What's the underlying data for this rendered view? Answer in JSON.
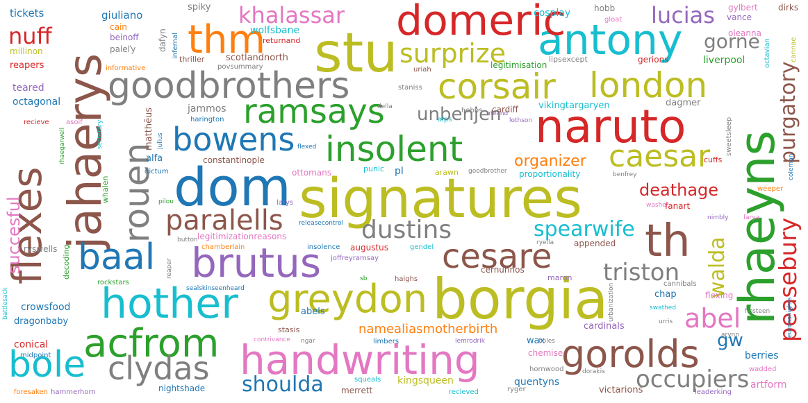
{
  "colors": {
    "blue": "#1f77b4",
    "orange": "#ff7f0e",
    "green": "#2ca02c",
    "red": "#d62728",
    "purple": "#9467bd",
    "brown": "#8c564b",
    "pink": "#e377c2",
    "gray": "#7f7f7f",
    "olive": "#bcbd22",
    "cyan": "#17becf"
  },
  "words": [
    {
      "text": "signatures",
      "color": "olive"
    },
    {
      "text": "borgia",
      "color": "olive"
    },
    {
      "text": "dom",
      "color": "blue"
    },
    {
      "text": "naruto",
      "color": "red"
    },
    {
      "text": "rhaeyns",
      "color": "green"
    },
    {
      "text": "jahaerys",
      "color": "brown"
    },
    {
      "text": "flexes",
      "color": "brown"
    },
    {
      "text": "stu",
      "color": "olive"
    },
    {
      "text": "goodbrothers",
      "color": "gray"
    },
    {
      "text": "hother",
      "color": "cyan"
    },
    {
      "text": "acfrom",
      "color": "green"
    },
    {
      "text": "handwriting",
      "color": "pink"
    },
    {
      "text": "greydon",
      "color": "olive"
    },
    {
      "text": "brutus",
      "color": "purple"
    },
    {
      "text": "antony",
      "color": "cyan"
    },
    {
      "text": "domeric",
      "color": "red"
    },
    {
      "text": "corsair",
      "color": "olive"
    },
    {
      "text": "london",
      "color": "olive"
    },
    {
      "text": "insolent",
      "color": "green"
    },
    {
      "text": "ramsays",
      "color": "green"
    },
    {
      "text": "gorolds",
      "color": "brown"
    },
    {
      "text": "rouen",
      "color": "gray"
    },
    {
      "text": "thm",
      "color": "orange"
    },
    {
      "text": "th",
      "color": "brown"
    },
    {
      "text": "baal",
      "color": "blue"
    },
    {
      "text": "bole",
      "color": "cyan"
    },
    {
      "text": "clydas",
      "color": "gray"
    },
    {
      "text": "cesare",
      "color": "brown"
    },
    {
      "text": "bowens",
      "color": "blue"
    },
    {
      "text": "caesar",
      "color": "olive"
    },
    {
      "text": "paralells",
      "color": "brown"
    },
    {
      "text": "surprize",
      "color": "olive"
    },
    {
      "text": "dustins",
      "color": "gray"
    },
    {
      "text": "triston",
      "color": "gray"
    },
    {
      "text": "occupiers",
      "color": "gray"
    },
    {
      "text": "peasebury",
      "color": "red"
    },
    {
      "text": "khalassar",
      "color": "pink"
    },
    {
      "text": "lucias",
      "color": "purple"
    },
    {
      "text": "abel",
      "color": "pink"
    },
    {
      "text": "spearwife",
      "color": "cyan"
    },
    {
      "text": "shoulda",
      "color": "blue"
    },
    {
      "text": "nuff",
      "color": "red"
    },
    {
      "text": "purgatory",
      "color": "brown"
    },
    {
      "text": "walda",
      "color": "olive"
    },
    {
      "text": "gorne",
      "color": "gray"
    },
    {
      "text": "unbenjen",
      "color": "gray"
    },
    {
      "text": "organizer",
      "color": "orange"
    },
    {
      "text": "deathage",
      "color": "red"
    },
    {
      "text": "succesful",
      "color": "pink"
    },
    {
      "text": "gw",
      "color": "blue"
    },
    {
      "text": "namealiasmotherbirth",
      "color": "orange"
    },
    {
      "text": "tickets",
      "color": "blue"
    },
    {
      "text": "spiky",
      "color": "gray"
    },
    {
      "text": "cosplay",
      "color": "cyan"
    },
    {
      "text": "hobb",
      "color": "gray"
    },
    {
      "text": "gylbert",
      "color": "pink"
    },
    {
      "text": "dirks",
      "color": "brown"
    },
    {
      "text": "vance",
      "color": "purple"
    },
    {
      "text": "gloat",
      "color": "pink"
    },
    {
      "text": "giuliano",
      "color": "blue"
    },
    {
      "text": "cain",
      "color": "orange"
    },
    {
      "text": "beinoff",
      "color": "purple"
    },
    {
      "text": "paleľy",
      "color": "gray"
    },
    {
      "text": "wolfsbane",
      "color": "cyan"
    },
    {
      "text": "returnand",
      "color": "red"
    },
    {
      "text": "dafyn",
      "color": "gray"
    },
    {
      "text": "infernal",
      "color": "blue"
    },
    {
      "text": "millinon",
      "color": "olive"
    },
    {
      "text": "reapers",
      "color": "red"
    },
    {
      "text": "scotlandnorth",
      "color": "brown"
    },
    {
      "text": "thriller",
      "color": "brown"
    },
    {
      "text": "povsummary",
      "color": "gray"
    },
    {
      "text": "informative",
      "color": "orange"
    },
    {
      "text": "uriah",
      "color": "brown"
    },
    {
      "text": "lipsexcept",
      "color": "gray"
    },
    {
      "text": "legitimisation",
      "color": "green"
    },
    {
      "text": "gerions",
      "color": "red"
    },
    {
      "text": "liverpool",
      "color": "green"
    },
    {
      "text": "oleanna",
      "color": "pink"
    },
    {
      "text": "octavian",
      "color": "cyan"
    },
    {
      "text": "cannae",
      "color": "olive"
    },
    {
      "text": "teared",
      "color": "purple"
    },
    {
      "text": "staniss",
      "color": "gray"
    },
    {
      "text": "octagonal",
      "color": "blue"
    },
    {
      "text": "jammos",
      "color": "gray"
    },
    {
      "text": "vikingtargaryen",
      "color": "cyan"
    },
    {
      "text": "dagmer",
      "color": "gray"
    },
    {
      "text": "matthēus",
      "color": "brown"
    },
    {
      "text": "della",
      "color": "gray"
    },
    {
      "text": "meand",
      "color": "purple"
    },
    {
      "text": "recieve",
      "color": "red"
    },
    {
      "text": "asoif",
      "color": "pink"
    },
    {
      "text": "secretary",
      "color": "cyan"
    },
    {
      "text": "harington",
      "color": "blue"
    },
    {
      "text": "hobbs",
      "color": "gray"
    },
    {
      "text": "cardiff",
      "color": "brown"
    },
    {
      "text": "sweetsleep",
      "color": "gray"
    },
    {
      "text": "rhaegarwell",
      "color": "green"
    },
    {
      "text": "julius",
      "color": "blue"
    },
    {
      "text": "alps",
      "color": "cyan"
    },
    {
      "text": "lothson",
      "color": "purple"
    },
    {
      "text": "alfa",
      "color": "blue"
    },
    {
      "text": "flexed",
      "color": "blue"
    },
    {
      "text": "constantinople",
      "color": "brown"
    },
    {
      "text": "cuffs",
      "color": "red"
    },
    {
      "text": "coleman",
      "color": "blue"
    },
    {
      "text": "dictum",
      "color": "blue"
    },
    {
      "text": "ottomans",
      "color": "pink"
    },
    {
      "text": "punic",
      "color": "cyan"
    },
    {
      "text": "pl",
      "color": "blue"
    },
    {
      "text": "arawn",
      "color": "olive"
    },
    {
      "text": "goodbrother",
      "color": "gray"
    },
    {
      "text": "proportionality",
      "color": "cyan"
    },
    {
      "text": "benfrey",
      "color": "gray"
    },
    {
      "text": "weeper",
      "color": "orange"
    },
    {
      "text": "whalen",
      "color": "green"
    },
    {
      "text": "pilou",
      "color": "green"
    },
    {
      "text": "larys",
      "color": "purple"
    },
    {
      "text": "fanart",
      "color": "red"
    },
    {
      "text": "washer",
      "color": "pink"
    },
    {
      "text": "nimbly",
      "color": "purple"
    },
    {
      "text": "farya",
      "color": "pink"
    },
    {
      "text": "releasecontrol",
      "color": "blue"
    },
    {
      "text": "legitimizationreasons",
      "color": "pink"
    },
    {
      "text": "button",
      "color": "gray"
    },
    {
      "text": "chamberlain",
      "color": "orange"
    },
    {
      "text": "ryella",
      "color": "gray"
    },
    {
      "text": "appended",
      "color": "brown"
    },
    {
      "text": "ryswells",
      "color": "gray"
    },
    {
      "text": "decoding",
      "color": "green"
    },
    {
      "text": "insolence",
      "color": "blue"
    },
    {
      "text": "augustus",
      "color": "red"
    },
    {
      "text": "gendel",
      "color": "cyan"
    },
    {
      "text": "joffreyramsay",
      "color": "purple"
    },
    {
      "text": "reaper",
      "color": "gray"
    },
    {
      "text": "rockstars",
      "color": "green"
    },
    {
      "text": "sb",
      "color": "green"
    },
    {
      "text": "haighs",
      "color": "brown"
    },
    {
      "text": "cernunnos",
      "color": "brown"
    },
    {
      "text": "maron",
      "color": "purple"
    },
    {
      "text": "urbanization",
      "color": "gray"
    },
    {
      "text": "cannibals",
      "color": "gray"
    },
    {
      "text": "battlesack",
      "color": "cyan"
    },
    {
      "text": "sealskinseenheard",
      "color": "blue"
    },
    {
      "text": "crowsfood",
      "color": "blue"
    },
    {
      "text": "chap",
      "color": "blue"
    },
    {
      "text": "flexing",
      "color": "pink"
    },
    {
      "text": "euronsnights",
      "color": "blue"
    },
    {
      "text": "swathed",
      "color": "cyan"
    },
    {
      "text": "hosteen",
      "color": "gray"
    },
    {
      "text": "dragonbaby",
      "color": "blue"
    },
    {
      "text": "abels",
      "color": "blue"
    },
    {
      "text": "stasis",
      "color": "brown"
    },
    {
      "text": "cardinals",
      "color": "purple"
    },
    {
      "text": "urris",
      "color": "gray"
    },
    {
      "text": "conical",
      "color": "red"
    },
    {
      "text": "wax",
      "color": "blue"
    },
    {
      "text": "contrivance",
      "color": "pink"
    },
    {
      "text": "ngar",
      "color": "gray"
    },
    {
      "text": "limbers",
      "color": "blue"
    },
    {
      "text": "lemrodrik",
      "color": "purple"
    },
    {
      "text": "boles",
      "color": "gray"
    },
    {
      "text": "arynn",
      "color": "gray"
    },
    {
      "text": "midpoint",
      "color": "blue"
    },
    {
      "text": "chemise",
      "color": "pink"
    },
    {
      "text": "berries",
      "color": "blue"
    },
    {
      "text": "wadded",
      "color": "pink"
    },
    {
      "text": "hornwood",
      "color": "gray"
    },
    {
      "text": "dorakis",
      "color": "gray"
    },
    {
      "text": "squeals",
      "color": "cyan"
    },
    {
      "text": "kingsqueen",
      "color": "olive"
    },
    {
      "text": "quentyns",
      "color": "blue"
    },
    {
      "text": "artform",
      "color": "pink"
    },
    {
      "text": "nightshade",
      "color": "blue"
    },
    {
      "text": "foresaken",
      "color": "orange"
    },
    {
      "text": "hammerhorn",
      "color": "purple"
    },
    {
      "text": "merrett",
      "color": "brown"
    },
    {
      "text": "recieved",
      "color": "cyan"
    },
    {
      "text": "ryger",
      "color": "gray"
    },
    {
      "text": "victarions",
      "color": "brown"
    },
    {
      "text": "leaderking",
      "color": "purple"
    }
  ]
}
